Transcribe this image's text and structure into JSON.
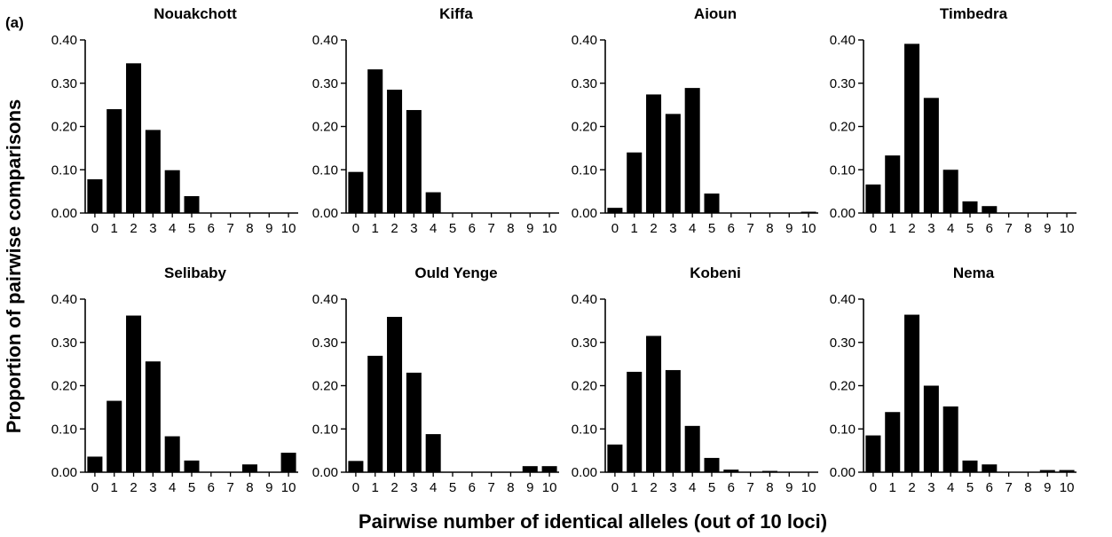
{
  "figure": {
    "panel_label": "(a)",
    "ylabel": "Proportion of pairwise comparisons",
    "xlabel": "Pairwise number of identical alleles (out of 10 loci)"
  },
  "chart_data": [
    {
      "type": "bar",
      "title": "Nouakchott",
      "categories": [
        "0",
        "1",
        "2",
        "3",
        "4",
        "5",
        "6",
        "7",
        "8",
        "9",
        "10"
      ],
      "values": [
        0.078,
        0.24,
        0.346,
        0.192,
        0.099,
        0.039,
        0,
        0,
        0,
        0,
        0
      ],
      "ylim": [
        0,
        0.4
      ],
      "yticks": [
        "0.00",
        "0.10",
        "0.20",
        "0.30",
        "0.40"
      ]
    },
    {
      "type": "bar",
      "title": "Kiffa",
      "categories": [
        "0",
        "1",
        "2",
        "3",
        "4",
        "5",
        "6",
        "7",
        "8",
        "9",
        "10"
      ],
      "values": [
        0.095,
        0.332,
        0.285,
        0.238,
        0.048,
        0,
        0,
        0,
        0,
        0,
        0
      ],
      "ylim": [
        0,
        0.4
      ],
      "yticks": [
        "0.00",
        "0.10",
        "0.20",
        "0.30",
        "0.40"
      ]
    },
    {
      "type": "bar",
      "title": "Aioun",
      "categories": [
        "0",
        "1",
        "2",
        "3",
        "4",
        "5",
        "6",
        "7",
        "8",
        "9",
        "10"
      ],
      "values": [
        0.012,
        0.14,
        0.274,
        0.229,
        0.289,
        0.045,
        0,
        0,
        0,
        0,
        0.003
      ],
      "ylim": [
        0,
        0.4
      ],
      "yticks": [
        "0.00",
        "0.10",
        "0.20",
        "0.30",
        "0.40"
      ]
    },
    {
      "type": "bar",
      "title": "Timbedra",
      "categories": [
        "0",
        "1",
        "2",
        "3",
        "4",
        "5",
        "6",
        "7",
        "8",
        "9",
        "10"
      ],
      "values": [
        0.066,
        0.133,
        0.391,
        0.266,
        0.1,
        0.027,
        0.016,
        0,
        0,
        0,
        0
      ],
      "ylim": [
        0,
        0.4
      ],
      "yticks": [
        "0.00",
        "0.10",
        "0.20",
        "0.30",
        "0.40"
      ]
    },
    {
      "type": "bar",
      "title": "Selibaby",
      "categories": [
        "0",
        "1",
        "2",
        "3",
        "4",
        "5",
        "6",
        "7",
        "8",
        "9",
        "10"
      ],
      "values": [
        0.036,
        0.165,
        0.362,
        0.256,
        0.083,
        0.027,
        0,
        0,
        0.018,
        0,
        0.045
      ],
      "ylim": [
        0,
        0.4
      ],
      "yticks": [
        "0.00",
        "0.10",
        "0.20",
        "0.30",
        "0.40"
      ]
    },
    {
      "type": "bar",
      "title": "Ould Yenge",
      "categories": [
        "0",
        "1",
        "2",
        "3",
        "4",
        "5",
        "6",
        "7",
        "8",
        "9",
        "10"
      ],
      "values": [
        0.026,
        0.269,
        0.359,
        0.23,
        0.088,
        0,
        0,
        0,
        0,
        0.014,
        0.014
      ],
      "ylim": [
        0,
        0.4
      ],
      "yticks": [
        "0.00",
        "0.10",
        "0.20",
        "0.30",
        "0.40"
      ]
    },
    {
      "type": "bar",
      "title": "Kobeni",
      "categories": [
        "0",
        "1",
        "2",
        "3",
        "4",
        "5",
        "6",
        "7",
        "8",
        "9",
        "10"
      ],
      "values": [
        0.064,
        0.232,
        0.315,
        0.236,
        0.107,
        0.033,
        0.006,
        0,
        0.003,
        0,
        0
      ],
      "ylim": [
        0,
        0.4
      ],
      "yticks": [
        "0.00",
        "0.10",
        "0.20",
        "0.30",
        "0.40"
      ]
    },
    {
      "type": "bar",
      "title": "Nema",
      "categories": [
        "0",
        "1",
        "2",
        "3",
        "4",
        "5",
        "6",
        "7",
        "8",
        "9",
        "10"
      ],
      "values": [
        0.085,
        0.139,
        0.364,
        0.2,
        0.152,
        0.027,
        0.018,
        0,
        0,
        0.005,
        0.005
      ],
      "ylim": [
        0,
        0.4
      ],
      "yticks": [
        "0.00",
        "0.10",
        "0.20",
        "0.30",
        "0.40"
      ]
    }
  ]
}
